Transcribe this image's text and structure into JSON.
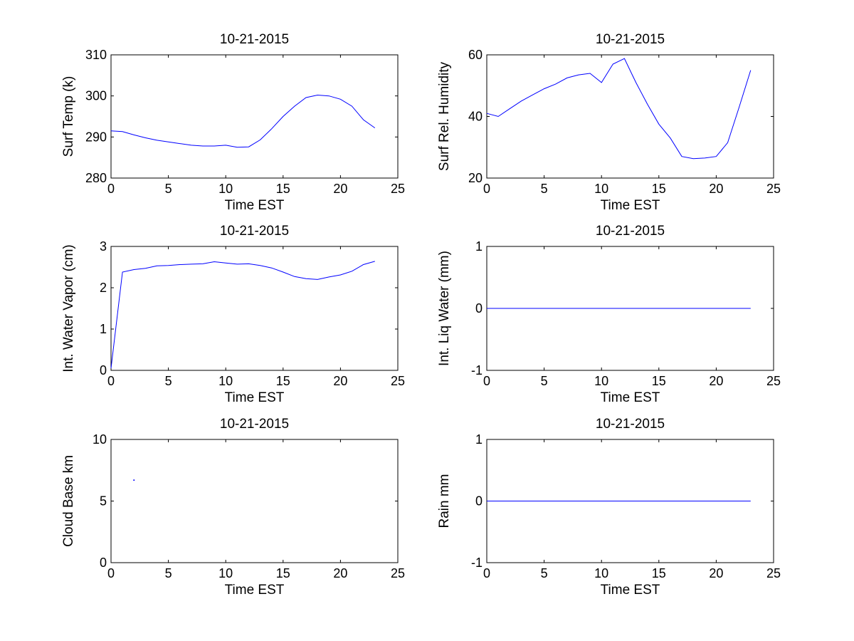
{
  "chart_data": [
    {
      "type": "line",
      "title": "10-21-2015",
      "xlabel": "Time EST",
      "ylabel": "Surf Temp (k)",
      "xlim": [
        0,
        25
      ],
      "ylim": [
        280,
        310
      ],
      "xticks": [
        0,
        5,
        10,
        15,
        20,
        25
      ],
      "yticks": [
        280,
        290,
        300,
        310
      ],
      "grid": false,
      "series": [
        {
          "color": "#0000ff",
          "x": [
            0,
            1,
            2,
            3,
            4,
            5,
            6,
            7,
            8,
            9,
            10,
            11,
            12,
            13,
            14,
            15,
            16,
            17,
            18,
            19,
            20,
            21,
            22,
            23
          ],
          "y": [
            291.5,
            291.3,
            290.5,
            289.8,
            289.2,
            288.8,
            288.4,
            288.0,
            287.8,
            287.8,
            288.0,
            287.5,
            287.6,
            289.3,
            292.0,
            295.0,
            297.5,
            299.6,
            300.2,
            300.0,
            299.2,
            297.5,
            294.2,
            292.2
          ]
        }
      ]
    },
    {
      "type": "line",
      "title": "10-21-2015",
      "xlabel": "Time EST",
      "ylabel": "Surf Rel. Humidity",
      "xlim": [
        0,
        25
      ],
      "ylim": [
        20,
        60
      ],
      "xticks": [
        0,
        5,
        10,
        15,
        20,
        25
      ],
      "yticks": [
        20,
        40,
        60
      ],
      "grid": false,
      "series": [
        {
          "color": "#0000ff",
          "x": [
            0,
            1,
            2,
            3,
            4,
            5,
            6,
            7,
            8,
            9,
            10,
            11,
            12,
            13,
            14,
            15,
            16,
            17,
            18,
            19,
            20,
            21,
            22,
            23
          ],
          "y": [
            41,
            40,
            42.5,
            45,
            47,
            49,
            50.5,
            52.5,
            53.5,
            54,
            51,
            57,
            58.8,
            51,
            44,
            37.5,
            33,
            27,
            26.3,
            26.5,
            27,
            31.5,
            43,
            55
          ]
        }
      ]
    },
    {
      "type": "line",
      "title": "10-21-2015",
      "xlabel": "Time EST",
      "ylabel": "Int. Water Vapor (cm)",
      "xlim": [
        0,
        25
      ],
      "ylim": [
        0,
        3
      ],
      "xticks": [
        0,
        5,
        10,
        15,
        20,
        25
      ],
      "yticks": [
        0,
        1,
        2,
        3
      ],
      "grid": false,
      "series": [
        {
          "color": "#0000ff",
          "x": [
            0,
            1,
            2,
            3,
            4,
            5,
            6,
            7,
            8,
            9,
            10,
            11,
            12,
            13,
            14,
            15,
            16,
            17,
            18,
            19,
            20,
            21,
            22,
            23
          ],
          "y": [
            0.05,
            2.38,
            2.44,
            2.47,
            2.53,
            2.54,
            2.56,
            2.57,
            2.58,
            2.63,
            2.6,
            2.57,
            2.58,
            2.54,
            2.48,
            2.38,
            2.27,
            2.22,
            2.2,
            2.26,
            2.31,
            2.4,
            2.56,
            2.64
          ]
        }
      ]
    },
    {
      "type": "line",
      "title": "10-21-2015",
      "xlabel": "Time EST",
      "ylabel": "Int. Liq Water (mm)",
      "xlim": [
        0,
        25
      ],
      "ylim": [
        -1,
        1
      ],
      "xticks": [
        0,
        5,
        10,
        15,
        20,
        25
      ],
      "yticks": [
        -1,
        0,
        1
      ],
      "grid": false,
      "series": [
        {
          "color": "#0000ff",
          "x": [
            0,
            1,
            2,
            3,
            4,
            5,
            6,
            7,
            8,
            9,
            10,
            11,
            12,
            13,
            14,
            15,
            16,
            17,
            18,
            19,
            20,
            21,
            22,
            23
          ],
          "y": [
            0,
            0,
            0,
            0,
            0,
            0,
            0,
            0,
            0,
            0,
            0,
            0,
            0,
            0,
            0,
            0,
            0,
            0,
            0,
            0,
            0,
            0,
            0,
            0
          ]
        }
      ]
    },
    {
      "type": "scatter",
      "title": "10-21-2015",
      "xlabel": "Time EST",
      "ylabel": "Cloud Base km",
      "xlim": [
        0,
        25
      ],
      "ylim": [
        0,
        10
      ],
      "xticks": [
        0,
        5,
        10,
        15,
        20,
        25
      ],
      "yticks": [
        0,
        5,
        10
      ],
      "grid": false,
      "series": [
        {
          "color": "#0000ff",
          "x": [
            2
          ],
          "y": [
            6.7
          ]
        }
      ]
    },
    {
      "type": "line",
      "title": "10-21-2015",
      "xlabel": "Time EST",
      "ylabel": "Rain mm",
      "xlim": [
        0,
        25
      ],
      "ylim": [
        -1,
        1
      ],
      "xticks": [
        0,
        5,
        10,
        15,
        20,
        25
      ],
      "yticks": [
        -1,
        0,
        1
      ],
      "grid": false,
      "series": [
        {
          "color": "#0000ff",
          "x": [
            0,
            1,
            2,
            3,
            4,
            5,
            6,
            7,
            8,
            9,
            10,
            11,
            12,
            13,
            14,
            15,
            16,
            17,
            18,
            19,
            20,
            21,
            22,
            23
          ],
          "y": [
            0,
            0,
            0,
            0,
            0,
            0,
            0,
            0,
            0,
            0,
            0,
            0,
            0,
            0,
            0,
            0,
            0,
            0,
            0,
            0,
            0,
            0,
            0,
            0
          ]
        }
      ]
    }
  ]
}
